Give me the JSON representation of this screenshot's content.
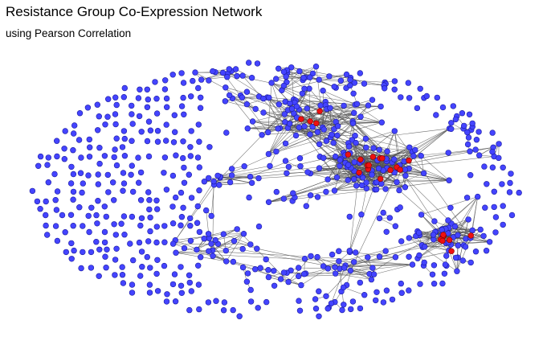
{
  "header": {
    "title": "Resistance Group Co-Expression Network",
    "subtitle": "using Pearson Correlation"
  },
  "colors": {
    "node_fill": "#4444ff",
    "node_stroke": "#1a1aa0",
    "highlight_fill": "#ee1111",
    "highlight_stroke": "#8a0000",
    "edge": "#555555",
    "background": "#ffffff"
  },
  "chart_data": {
    "type": "network",
    "layout": "force-directed, elliptical",
    "node_groups": [
      "ordinary",
      "highlighted"
    ],
    "node_colors": {
      "ordinary": "blue",
      "highlighted": "red"
    },
    "approx_node_count": 700,
    "approx_highlighted_count": 30,
    "dense_clusters": 4
  }
}
